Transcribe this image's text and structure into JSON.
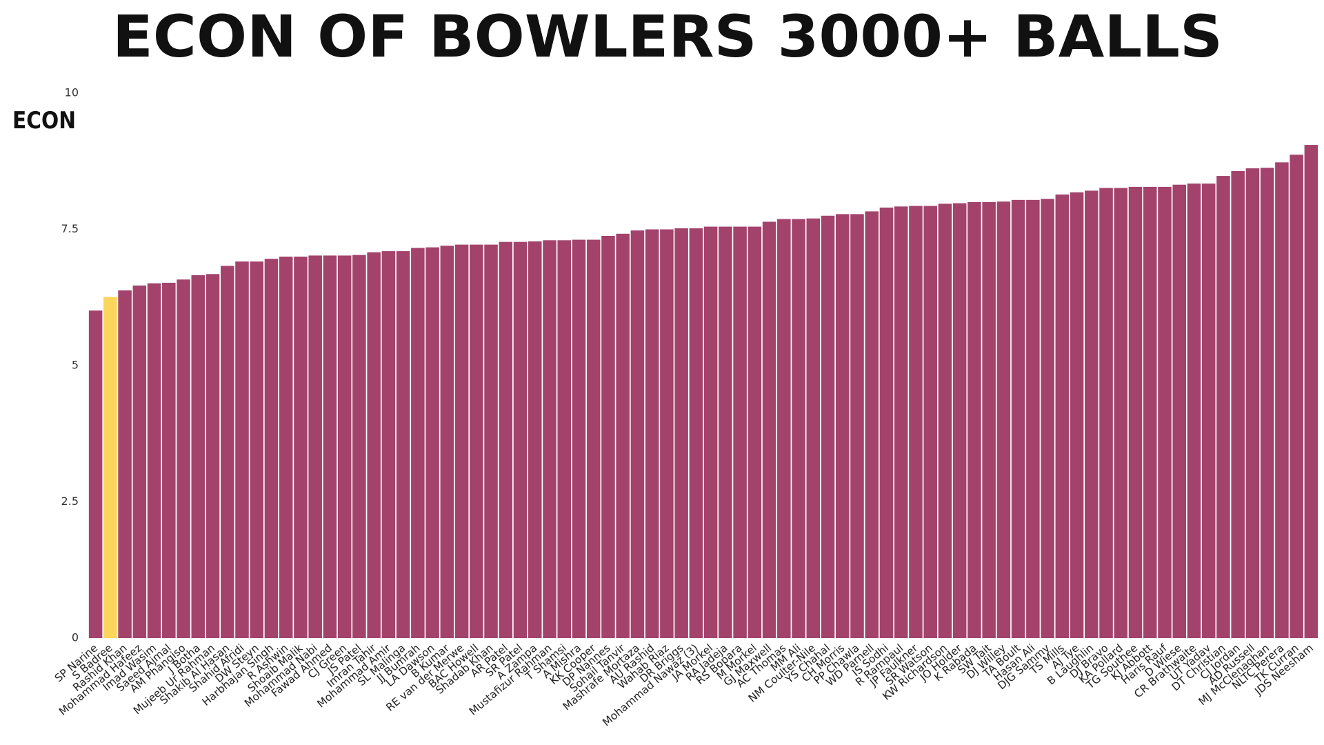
{
  "chart_data": {
    "type": "bar",
    "title": "ECON OF BOWLERS 3000+ BALLS",
    "y_label": "ECON",
    "categories": [
      "SP Narine",
      "S Badree",
      "Rashid Khan",
      "Mohammad Hafeez",
      "Imad Wasim",
      "Saeed Ajmal",
      "AM Phangiso",
      "J Botha",
      "Mujeeb Ur Rahman",
      "Shakib Al Hasan",
      "Shahid Afridi",
      "DW Steyn",
      "Harbhajan Singh",
      "R Ashwin",
      "Shoaib Malik",
      "Mohammad Nabi",
      "Fawad Ahmed",
      "CJ Green",
      "JS Patel",
      "Imran Tahir",
      "Mohammad Amir",
      "SL Malinga",
      "JJ Bumrah",
      "LA Dawson",
      "B Kumar",
      "RE van der Merwe",
      "BAC Howell",
      "Shadab Khan",
      "AR Patel",
      "SR Patel",
      "A Zampa",
      "Mustafizur Rahman",
      "T Shamsi",
      "A Mishra",
      "KK Cooper",
      "DP Nannes",
      "Sohail Tanvir",
      "Mashrafe Mortaza",
      "AU Rashid",
      "Wahab Riaz",
      "DR Briggs",
      "Mohammad Nawaz (3)",
      "JA Morkel",
      "RA Jadeja",
      "RS Bopara",
      "M Morkel",
      "GJ Maxwell",
      "AC Thomas",
      "MM Ali",
      "NM Coulter-Nile",
      "YS Chahal",
      "CH Morris",
      "PP Chawla",
      "WD Parnell",
      "IS Sodhi",
      "R Rampaul",
      "JP Faulkner",
      "SR Watson",
      "KW Richardson",
      "JO Holder",
      "K Rabada",
      "SW Tait",
      "DJ Willey",
      "TA Boult",
      "Hasan Ali",
      "DJG Sammy",
      "TS Mills",
      "AJ Tye",
      "B Laughlin",
      "DJ Bravo",
      "KA Pollard",
      "TG Southee",
      "KJ Abbott",
      "Haris Rauf",
      "D Wiese",
      "CR Brathwaite",
      "UT Yadav",
      "DT Christian",
      "CJ Jordan",
      "AD Russell",
      "MJ McClenaghan",
      "NLTC Perera",
      "TK Curran",
      "JDS Neesham"
    ],
    "values": [
      6.01,
      6.26,
      6.38,
      6.47,
      6.51,
      6.52,
      6.58,
      6.66,
      6.68,
      6.83,
      6.91,
      6.91,
      6.96,
      7.0,
      7.0,
      7.02,
      7.02,
      7.02,
      7.03,
      7.08,
      7.1,
      7.1,
      7.16,
      7.17,
      7.2,
      7.22,
      7.22,
      7.22,
      7.27,
      7.27,
      7.28,
      7.3,
      7.3,
      7.31,
      7.31,
      7.38,
      7.42,
      7.48,
      7.5,
      7.5,
      7.52,
      7.52,
      7.55,
      7.55,
      7.55,
      7.55,
      7.64,
      7.69,
      7.69,
      7.7,
      7.75,
      7.78,
      7.78,
      7.83,
      7.9,
      7.92,
      7.93,
      7.93,
      7.97,
      7.98,
      8.0,
      8.0,
      8.01,
      8.04,
      8.04,
      8.06,
      8.14,
      8.18,
      8.21,
      8.26,
      8.26,
      8.28,
      8.28,
      8.28,
      8.32,
      8.34,
      8.34,
      8.48,
      8.57,
      8.62,
      8.63,
      8.73,
      8.87,
      9.05
    ],
    "colors": [
      "#a3436c",
      "#fcd55c",
      "#a3436c",
      "#a3436c",
      "#a3436c",
      "#a3436c",
      "#a3436c",
      "#a3436c",
      "#a3436c",
      "#a3436c",
      "#a3436c",
      "#a3436c",
      "#a3436c",
      "#a3436c",
      "#a3436c",
      "#a3436c",
      "#a3436c",
      "#a3436c",
      "#a3436c",
      "#a3436c",
      "#a3436c",
      "#a3436c",
      "#a3436c",
      "#a3436c",
      "#a3436c",
      "#a3436c",
      "#a3436c",
      "#a3436c",
      "#a3436c",
      "#a3436c",
      "#a3436c",
      "#a3436c",
      "#a3436c",
      "#a3436c",
      "#a3436c",
      "#a3436c",
      "#a3436c",
      "#a3436c",
      "#a3436c",
      "#a3436c",
      "#a3436c",
      "#a3436c",
      "#a3436c",
      "#a3436c",
      "#a3436c",
      "#a3436c",
      "#a3436c",
      "#a3436c",
      "#a3436c",
      "#a3436c",
      "#a3436c",
      "#a3436c",
      "#a3436c",
      "#a3436c",
      "#a3436c",
      "#a3436c",
      "#a3436c",
      "#a3436c",
      "#a3436c",
      "#a3436c",
      "#a3436c",
      "#a3436c",
      "#a3436c",
      "#a3436c",
      "#a3436c",
      "#a3436c",
      "#a3436c",
      "#a3436c",
      "#a3436c",
      "#a3436c",
      "#a3436c",
      "#a3436c",
      "#a3436c",
      "#a3436c",
      "#a3436c",
      "#a3436c",
      "#a3436c",
      "#a3436c",
      "#a3436c",
      "#a3436c",
      "#a3436c",
      "#a3436c",
      "#a3436c",
      "#a3436c"
    ],
    "ylim": [
      0,
      10
    ],
    "yticks": [
      0,
      2.5,
      5,
      7.5,
      10
    ],
    "grid": false
  }
}
